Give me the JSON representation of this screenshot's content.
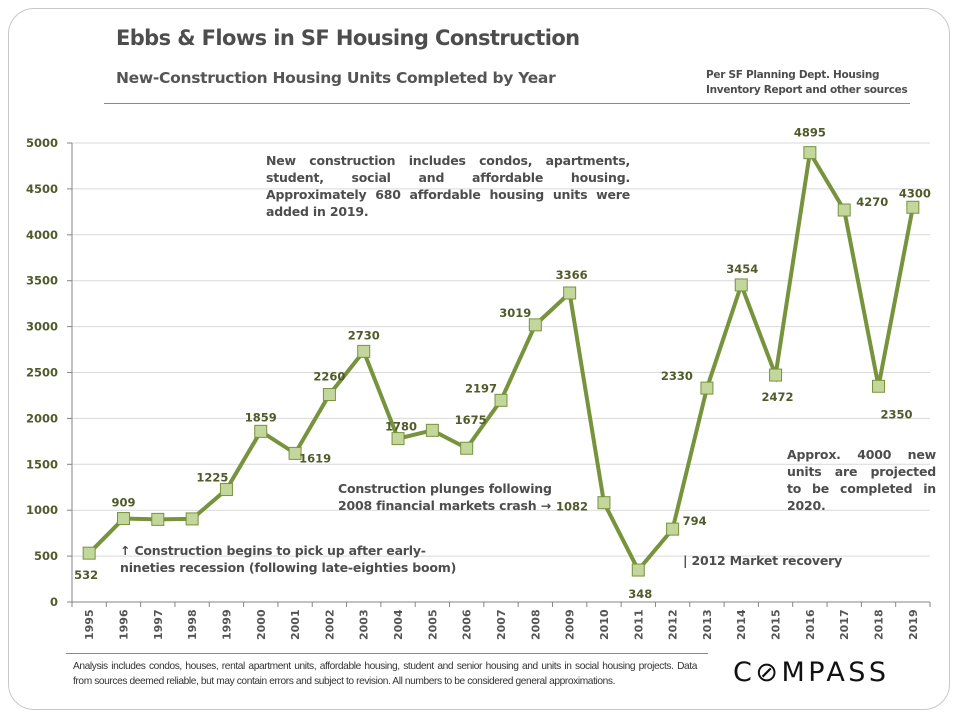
{
  "header": {
    "title": "Ebbs & Flows in SF Housing Construction",
    "subtitle": "New-Construction  Housing  Units Completed by Year",
    "source_line1": "Per SF Planning  Dept. Housing",
    "source_line2": "Inventory Report and other sources"
  },
  "annotations": {
    "top_note": "New construction includes condos, apartments, student, social and affordable housing. Approximately 680 affordable housing units were added in 2019.",
    "early_nineties_arrow": "↑",
    "early_nineties": "Construction begins to pick up after early-nineties recession (following late-eighties boom)",
    "crash_line1": "Construction plunges following",
    "crash_line2": "2008 financial markets crash →",
    "recovery": "| 2012 Market recovery",
    "projection": "Approx. 4000 new units are projected to be completed in 2020."
  },
  "footer": {
    "disclaimer": "Analysis includes condos, houses, rental apartment units, affordable housing, student and senior housing and units in social housing projects. Data from sources deemed reliable, but may contain errors and subject to revision. All numbers to be considered general approximations.",
    "brand": "C⊘MPASS"
  },
  "colors": {
    "line": "#77933c",
    "marker_fill": "#c3d69b",
    "marker_stroke": "#77933c",
    "label": "#4f5b2a",
    "grid": "#d9d9d9",
    "axis": "#868686"
  },
  "chart_data": {
    "type": "line",
    "title": "Ebbs & Flows in SF Housing Construction",
    "subtitle": "New-Construction Housing Units Completed by Year",
    "xlabel": "",
    "ylabel": "",
    "ylim": [
      0,
      5000
    ],
    "yticks": [
      0,
      500,
      1000,
      1500,
      2000,
      2500,
      3000,
      3500,
      4000,
      4500,
      5000
    ],
    "grid": true,
    "legend": "none",
    "categories": [
      "1995",
      "1996",
      "1997",
      "1998",
      "1999",
      "2000",
      "2001",
      "2002",
      "2003",
      "2004",
      "2005",
      "2006",
      "2007",
      "2008",
      "2009",
      "2010",
      "2011",
      "2012",
      "2013",
      "2014",
      "2015",
      "2016",
      "2017",
      "2018",
      "2019"
    ],
    "series": [
      {
        "name": "Housing units completed",
        "values": [
          532,
          909,
          900,
          905,
          1225,
          1859,
          1619,
          2260,
          2730,
          1780,
          1870,
          1675,
          2197,
          3019,
          3366,
          1082,
          348,
          794,
          2330,
          3454,
          2472,
          4895,
          4270,
          2350,
          4300
        ],
        "labels": [
          "532",
          "909",
          "",
          "",
          "1225",
          "1859",
          "1619",
          "2260",
          "2730",
          "1780",
          "",
          "1675",
          "2197",
          "3019",
          "3366",
          "1082",
          "348",
          "794",
          "2330",
          "3454",
          "2472",
          "4895",
          "4270",
          "2350",
          "4300"
        ]
      }
    ]
  }
}
